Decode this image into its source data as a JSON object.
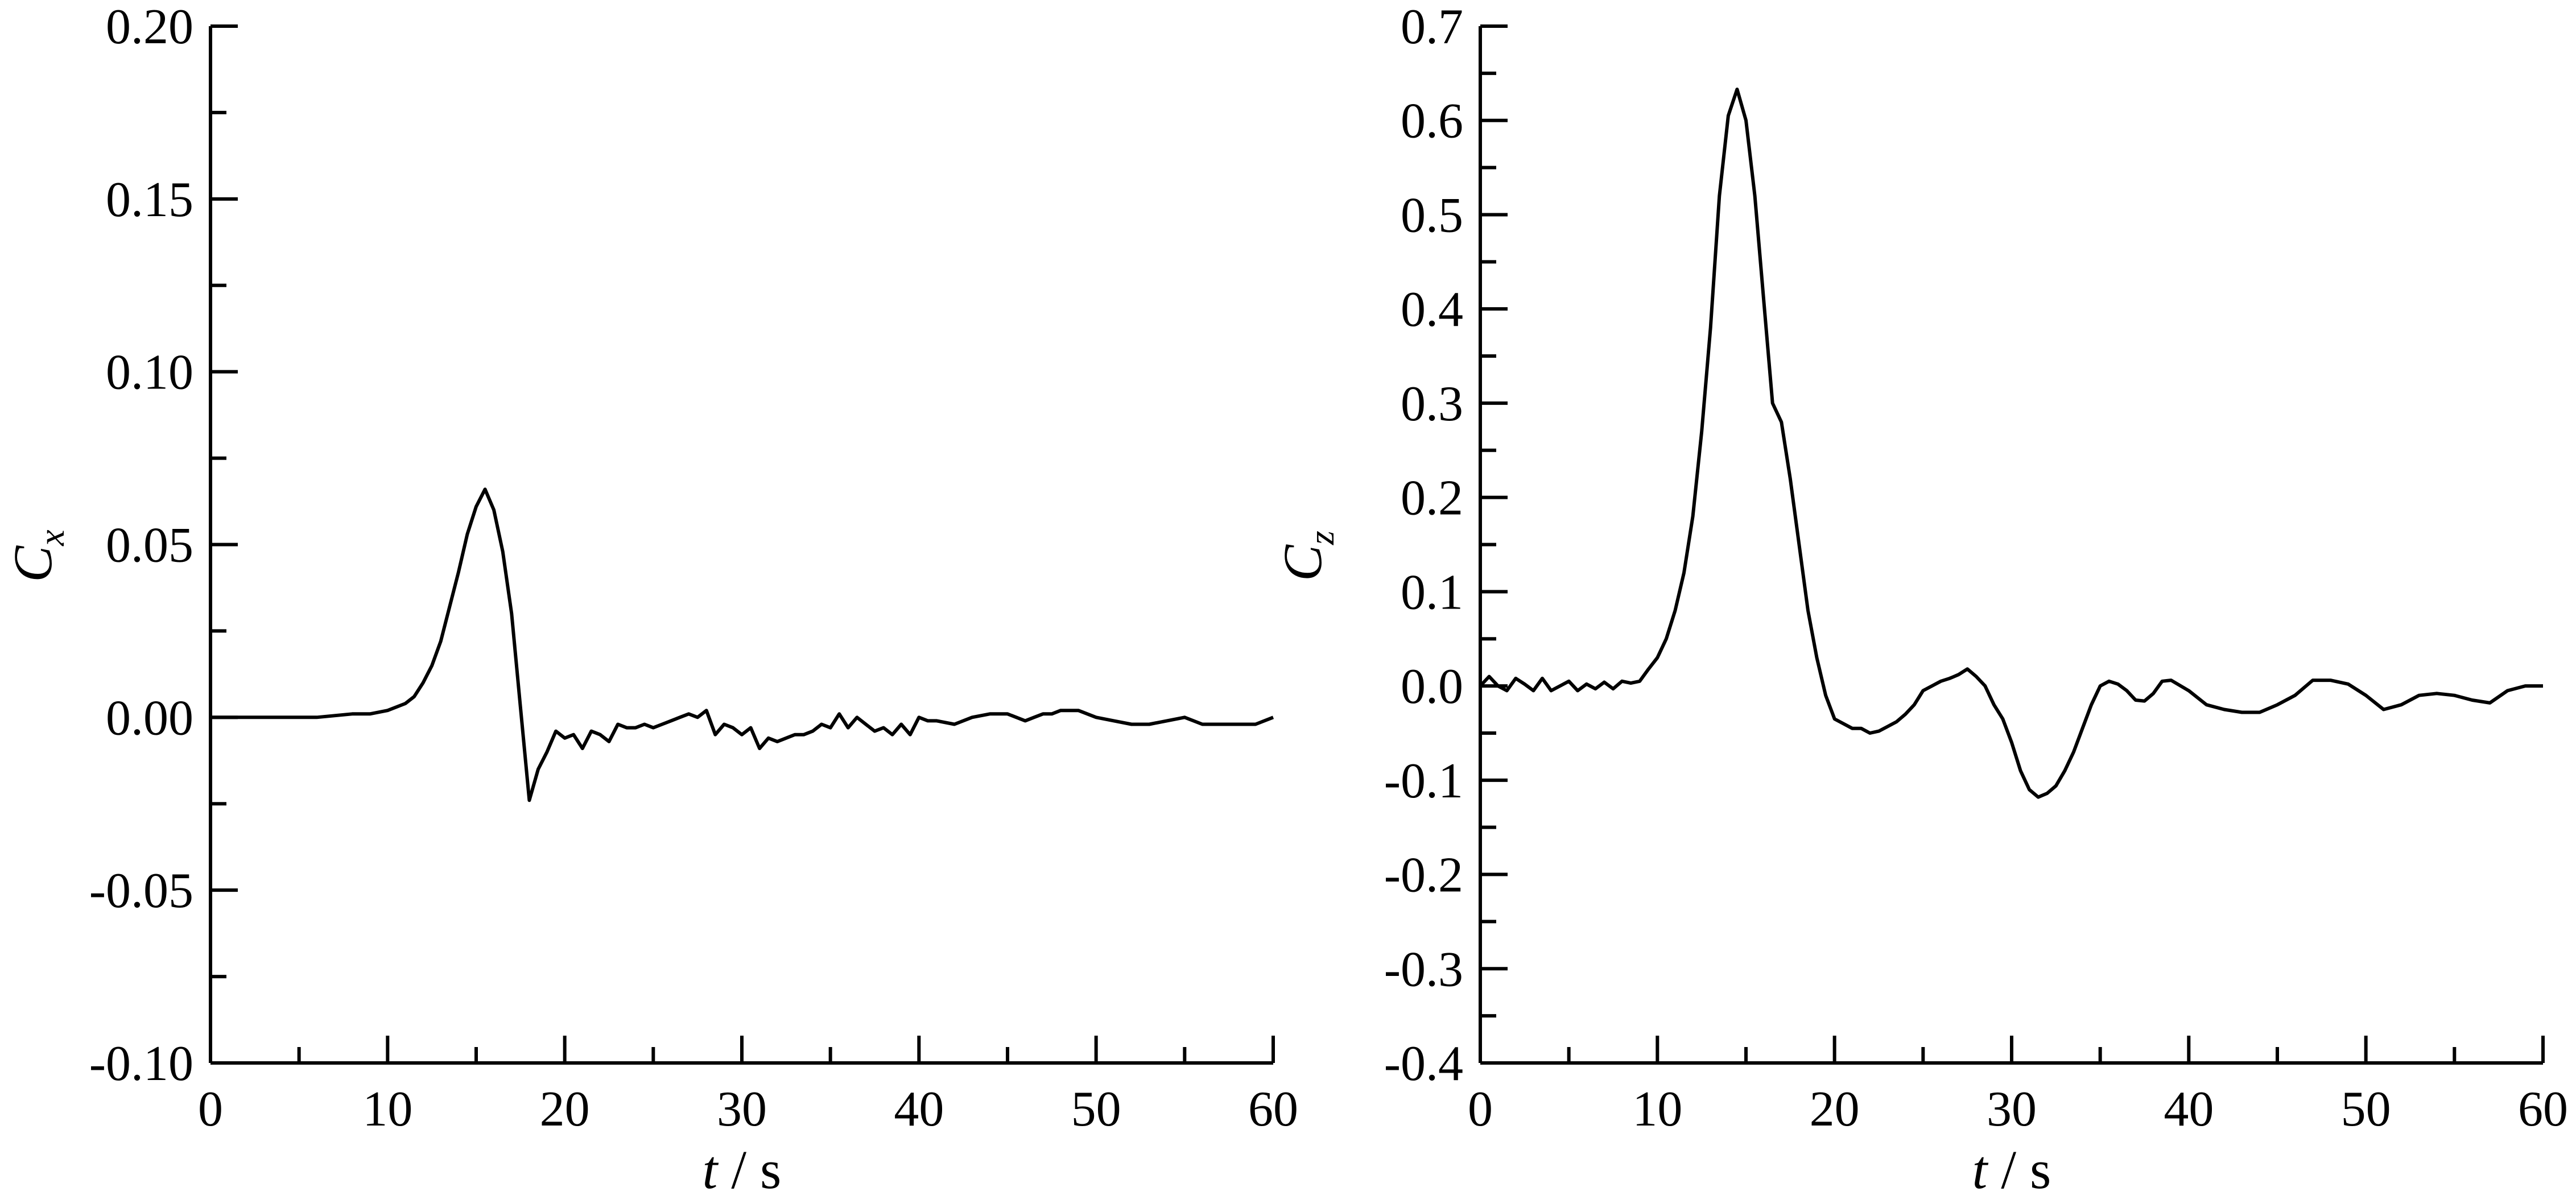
{
  "chart_data": [
    {
      "type": "line",
      "xlabel": {
        "var": "t",
        "unit": " / s"
      },
      "ylabel": {
        "var": "C",
        "sub": "x"
      },
      "xlim": [
        0,
        60
      ],
      "ylim": [
        -0.1,
        0.2
      ],
      "grid": false,
      "x_ticks": [
        "0",
        "10",
        "20",
        "30",
        "40",
        "50",
        "60"
      ],
      "y_ticks": [
        "0.20",
        "0.15",
        "0.10",
        "0.05",
        "0.00",
        "-0.05",
        "-0.10"
      ],
      "series": [
        {
          "x": [
            0,
            2,
            4,
            6,
            8,
            9,
            10,
            11,
            11.5,
            12,
            12.5,
            13,
            13.5,
            14,
            14.5,
            15,
            15.5,
            16,
            16.5,
            17,
            17.5,
            18,
            18.5,
            19,
            19.5,
            20,
            20.5,
            21,
            21.5,
            22,
            22.5,
            23,
            23.5,
            24,
            24.5,
            25,
            25.5,
            26,
            26.5,
            27,
            27.5,
            28,
            28.5,
            29,
            29.5,
            30,
            30.5,
            31,
            31.5,
            32,
            32.5,
            33,
            33.5,
            34,
            34.5,
            35,
            35.5,
            36,
            36.5,
            37,
            37.5,
            38,
            38.5,
            39,
            39.5,
            40,
            40.5,
            41,
            42,
            43,
            44,
            45,
            46,
            46.5,
            47,
            47.5,
            48,
            48.5,
            49,
            50,
            51,
            52,
            53,
            54,
            55,
            56,
            57,
            58,
            59,
            60
          ],
          "y": [
            0.0,
            0.0,
            0.0,
            0.0,
            0.001,
            0.001,
            0.002,
            0.004,
            0.006,
            0.01,
            0.015,
            0.022,
            0.032,
            0.042,
            0.053,
            0.061,
            0.066,
            0.06,
            0.048,
            0.03,
            0.003,
            -0.024,
            -0.015,
            -0.01,
            -0.004,
            -0.006,
            -0.005,
            -0.009,
            -0.004,
            -0.005,
            -0.007,
            -0.002,
            -0.003,
            -0.003,
            -0.002,
            -0.003,
            -0.002,
            -0.001,
            0.0,
            0.001,
            0.0,
            0.002,
            -0.005,
            -0.002,
            -0.003,
            -0.005,
            -0.003,
            -0.009,
            -0.006,
            -0.007,
            -0.006,
            -0.005,
            -0.005,
            -0.004,
            -0.002,
            -0.003,
            0.001,
            -0.003,
            0.0,
            -0.002,
            -0.004,
            -0.003,
            -0.005,
            -0.002,
            -0.005,
            0.0,
            -0.001,
            -0.001,
            -0.002,
            0.0,
            0.001,
            0.001,
            -0.001,
            0.0,
            0.001,
            0.001,
            0.002,
            0.002,
            0.002,
            0.0,
            -0.001,
            -0.002,
            -0.002,
            -0.001,
            0.0,
            -0.002,
            -0.002,
            -0.002,
            -0.002,
            0.0
          ]
        }
      ]
    },
    {
      "type": "line",
      "xlabel": {
        "var": "t",
        "unit": " / s"
      },
      "ylabel": {
        "var": "C",
        "sub": "z"
      },
      "xlim": [
        0,
        60
      ],
      "ylim": [
        -0.4,
        0.7
      ],
      "grid": false,
      "x_ticks": [
        "0",
        "10",
        "20",
        "30",
        "40",
        "50",
        "60"
      ],
      "y_ticks": [
        "0.7",
        "0.6",
        "0.5",
        "0.4",
        "0.3",
        "0.2",
        "0.1",
        "0.0",
        "-0.1",
        "-0.2",
        "-0.3",
        "-0.4"
      ],
      "series": [
        {
          "x": [
            0,
            0.5,
            1,
            1.5,
            2,
            2.5,
            3,
            3.5,
            4,
            4.5,
            5,
            5.5,
            6,
            6.5,
            7,
            7.5,
            8,
            8.5,
            9,
            9.5,
            10,
            10.5,
            11,
            11.5,
            12,
            12.5,
            13,
            13.5,
            14,
            14.5,
            15,
            15.5,
            16,
            16.5,
            17,
            17.5,
            18,
            18.5,
            19,
            19.5,
            20,
            20.5,
            21,
            21.5,
            22,
            22.5,
            23,
            23.5,
            24,
            24.5,
            25,
            25.5,
            26,
            26.5,
            27,
            27.5,
            28,
            28.5,
            29,
            29.5,
            30,
            30.5,
            31,
            31.5,
            32,
            32.5,
            33,
            33.5,
            34,
            34.5,
            35,
            35.5,
            36,
            36.5,
            37,
            37.5,
            38,
            38.5,
            39,
            40,
            41,
            42,
            43,
            44,
            45,
            46,
            47,
            48,
            49,
            50,
            51,
            52,
            53,
            54,
            55,
            56,
            57,
            58,
            59,
            60
          ],
          "y": [
            0.0,
            0.01,
            0.0,
            -0.005,
            0.008,
            0.002,
            -0.005,
            0.008,
            -0.005,
            0.0,
            0.005,
            -0.005,
            0.002,
            -0.003,
            0.004,
            -0.003,
            0.005,
            0.003,
            0.005,
            0.018,
            0.03,
            0.05,
            0.08,
            0.12,
            0.18,
            0.27,
            0.38,
            0.52,
            0.605,
            0.633,
            0.6,
            0.52,
            0.41,
            0.3,
            0.28,
            0.22,
            0.15,
            0.08,
            0.03,
            -0.01,
            -0.035,
            -0.04,
            -0.045,
            -0.045,
            -0.05,
            -0.048,
            -0.043,
            -0.038,
            -0.03,
            -0.02,
            -0.005,
            0.0,
            0.005,
            0.008,
            0.012,
            0.018,
            0.01,
            0.0,
            -0.02,
            -0.035,
            -0.06,
            -0.09,
            -0.11,
            -0.118,
            -0.114,
            -0.106,
            -0.09,
            -0.07,
            -0.045,
            -0.02,
            0.0,
            0.005,
            0.002,
            -0.005,
            -0.015,
            -0.016,
            -0.008,
            0.005,
            0.006,
            -0.005,
            -0.02,
            -0.025,
            -0.028,
            -0.028,
            -0.02,
            -0.01,
            0.006,
            0.006,
            0.002,
            -0.01,
            -0.025,
            -0.02,
            -0.01,
            -0.008,
            -0.01,
            -0.015,
            -0.018,
            -0.005,
            0.0,
            0.0
          ]
        }
      ]
    }
  ]
}
